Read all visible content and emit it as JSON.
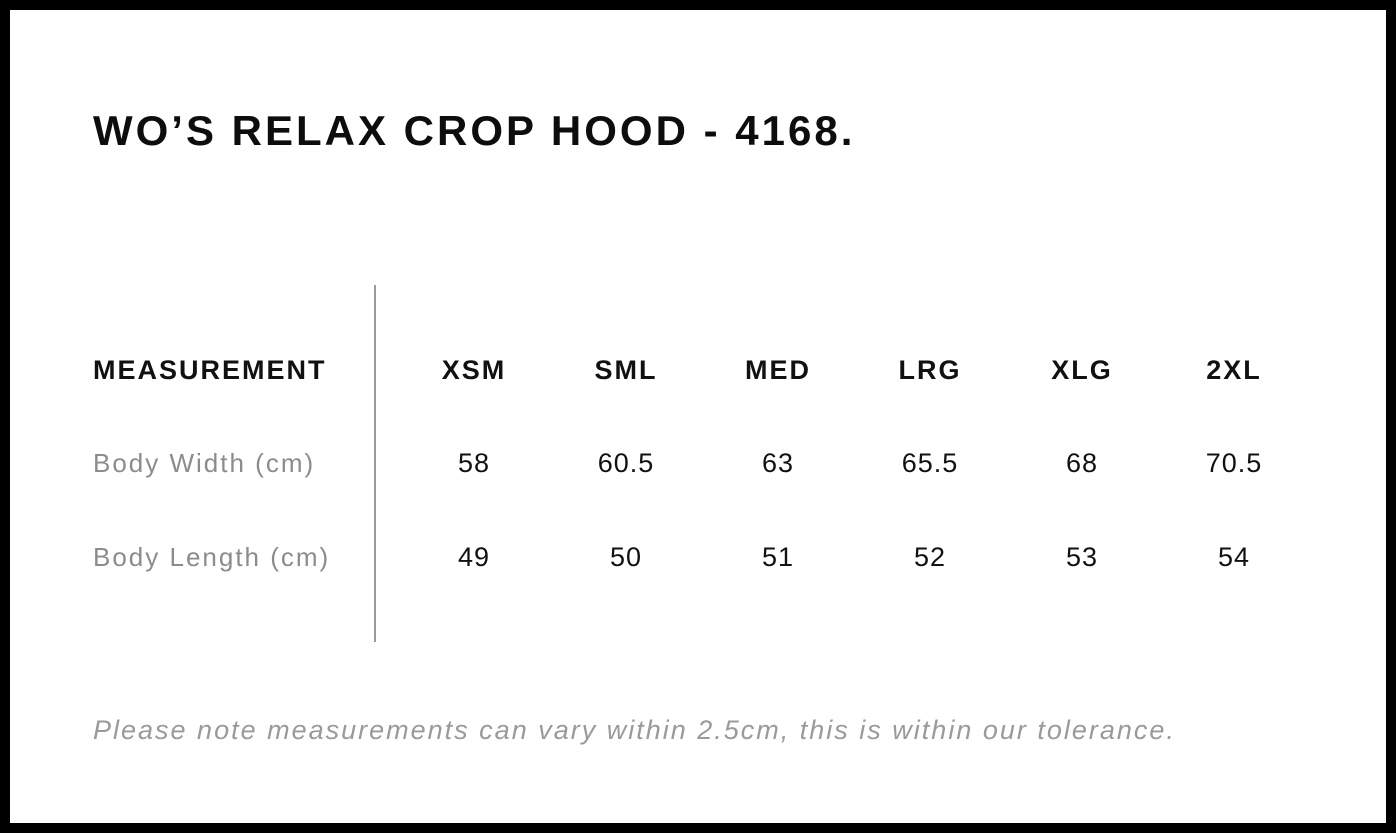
{
  "page": {
    "title": "WO’S RELAX CROP HOOD - 4168.",
    "note": "Please note measurements can vary within 2.5cm, this is within our tolerance."
  },
  "size_chart": {
    "header_label": "MEASUREMENT",
    "sizes": [
      "XSM",
      "SML",
      "MED",
      "LRG",
      "XLG",
      "2XL"
    ],
    "rows": [
      {
        "label": "Body Width (cm)",
        "values": [
          "58",
          "60.5",
          "63",
          "65.5",
          "68",
          "70.5"
        ]
      },
      {
        "label": "Body Length (cm)",
        "values": [
          "49",
          "50",
          "51",
          "52",
          "53",
          "54"
        ]
      }
    ]
  },
  "chart_data": {
    "type": "table",
    "title": "WO’S RELAX CROP HOOD - 4168.",
    "columns": [
      "MEASUREMENT",
      "XSM",
      "SML",
      "MED",
      "LRG",
      "XLG",
      "2XL"
    ],
    "rows": [
      [
        "Body Width (cm)",
        58,
        60.5,
        63,
        65.5,
        68,
        70.5
      ],
      [
        "Body Length (cm)",
        49,
        50,
        51,
        52,
        53,
        54
      ]
    ],
    "footnote": "Please note measurements can vary within 2.5cm, this is within our tolerance."
  },
  "colors": {
    "frame": "#000000",
    "background": "#ffffff",
    "text_primary": "#111111",
    "text_muted": "#8c8c8c",
    "divider": "#9a9a9a"
  }
}
